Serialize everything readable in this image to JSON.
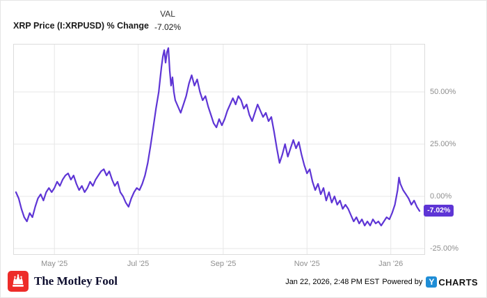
{
  "header": {
    "series_label": "XRP Price (I:XRPUSD) % Change",
    "val_header": "VAL",
    "val_value": "-7.02%"
  },
  "chart_data": {
    "type": "line",
    "title": "XRP Price (I:XRPUSD) % Change",
    "x_unit": "days since 2025-04-01",
    "xlim": [
      0,
      300
    ],
    "ylim": [
      -28,
      73
    ],
    "grid": true,
    "legend_position": "none",
    "xticks": [
      {
        "x": 30,
        "label": "May '25"
      },
      {
        "x": 91,
        "label": "Jul '25"
      },
      {
        "x": 153,
        "label": "Sep '25"
      },
      {
        "x": 214,
        "label": "Nov '25"
      },
      {
        "x": 275,
        "label": "Jan '26"
      }
    ],
    "yticks": [
      {
        "value": 50,
        "label": "50.00%"
      },
      {
        "value": 25,
        "label": "25.00%"
      },
      {
        "value": 0,
        "label": "0.00%"
      },
      {
        "value": -25,
        "label": "-25.00%"
      }
    ],
    "series": [
      {
        "name": "XRP Price (I:XRPUSD) % Change",
        "color": "#5e35d5",
        "points": [
          [
            2,
            2
          ],
          [
            4,
            -1
          ],
          [
            6,
            -6
          ],
          [
            8,
            -10
          ],
          [
            10,
            -12
          ],
          [
            12,
            -8
          ],
          [
            14,
            -10
          ],
          [
            16,
            -5
          ],
          [
            18,
            -1
          ],
          [
            20,
            1
          ],
          [
            22,
            -2
          ],
          [
            24,
            2
          ],
          [
            26,
            4
          ],
          [
            28,
            2
          ],
          [
            30,
            4
          ],
          [
            32,
            7
          ],
          [
            34,
            5
          ],
          [
            36,
            8
          ],
          [
            38,
            10
          ],
          [
            40,
            11
          ],
          [
            42,
            8
          ],
          [
            44,
            10
          ],
          [
            46,
            6
          ],
          [
            48,
            3
          ],
          [
            50,
            5
          ],
          [
            52,
            2
          ],
          [
            54,
            4
          ],
          [
            56,
            7
          ],
          [
            58,
            5
          ],
          [
            60,
            8
          ],
          [
            62,
            10
          ],
          [
            64,
            12
          ],
          [
            66,
            13
          ],
          [
            68,
            10
          ],
          [
            70,
            12
          ],
          [
            72,
            8
          ],
          [
            74,
            5
          ],
          [
            76,
            7
          ],
          [
            78,
            2
          ],
          [
            80,
            0
          ],
          [
            82,
            -3
          ],
          [
            84,
            -5
          ],
          [
            86,
            -1
          ],
          [
            88,
            2
          ],
          [
            90,
            4
          ],
          [
            92,
            3
          ],
          [
            94,
            6
          ],
          [
            96,
            10
          ],
          [
            98,
            16
          ],
          [
            100,
            24
          ],
          [
            102,
            33
          ],
          [
            104,
            42
          ],
          [
            106,
            50
          ],
          [
            107,
            56
          ],
          [
            108,
            62
          ],
          [
            109,
            67
          ],
          [
            110,
            70
          ],
          [
            111,
            64
          ],
          [
            112,
            69
          ],
          [
            113,
            71
          ],
          [
            114,
            60
          ],
          [
            115,
            53
          ],
          [
            116,
            57
          ],
          [
            117,
            50
          ],
          [
            118,
            46
          ],
          [
            120,
            43
          ],
          [
            122,
            40
          ],
          [
            124,
            44
          ],
          [
            126,
            48
          ],
          [
            128,
            54
          ],
          [
            130,
            58
          ],
          [
            132,
            53
          ],
          [
            134,
            56
          ],
          [
            136,
            50
          ],
          [
            138,
            46
          ],
          [
            140,
            48
          ],
          [
            142,
            43
          ],
          [
            144,
            39
          ],
          [
            146,
            35
          ],
          [
            148,
            33
          ],
          [
            150,
            37
          ],
          [
            152,
            34
          ],
          [
            154,
            37
          ],
          [
            156,
            41
          ],
          [
            158,
            44
          ],
          [
            160,
            47
          ],
          [
            162,
            44
          ],
          [
            164,
            48
          ],
          [
            166,
            46
          ],
          [
            168,
            42
          ],
          [
            170,
            44
          ],
          [
            172,
            39
          ],
          [
            174,
            36
          ],
          [
            176,
            40
          ],
          [
            178,
            44
          ],
          [
            180,
            41
          ],
          [
            182,
            38
          ],
          [
            184,
            40
          ],
          [
            186,
            36
          ],
          [
            188,
            38
          ],
          [
            190,
            31
          ],
          [
            192,
            23
          ],
          [
            194,
            16
          ],
          [
            196,
            20
          ],
          [
            198,
            25
          ],
          [
            200,
            19
          ],
          [
            202,
            23
          ],
          [
            204,
            27
          ],
          [
            206,
            23
          ],
          [
            208,
            26
          ],
          [
            210,
            20
          ],
          [
            212,
            15
          ],
          [
            214,
            11
          ],
          [
            216,
            13
          ],
          [
            218,
            7
          ],
          [
            220,
            3
          ],
          [
            222,
            6
          ],
          [
            224,
            1
          ],
          [
            226,
            4
          ],
          [
            228,
            -2
          ],
          [
            230,
            2
          ],
          [
            232,
            -3
          ],
          [
            234,
            0
          ],
          [
            236,
            -4
          ],
          [
            238,
            -2
          ],
          [
            240,
            -6
          ],
          [
            242,
            -4
          ],
          [
            244,
            -6
          ],
          [
            246,
            -9
          ],
          [
            248,
            -12
          ],
          [
            250,
            -10
          ],
          [
            252,
            -13
          ],
          [
            254,
            -11
          ],
          [
            256,
            -14
          ],
          [
            258,
            -12
          ],
          [
            260,
            -14
          ],
          [
            262,
            -11
          ],
          [
            264,
            -13
          ],
          [
            266,
            -12
          ],
          [
            268,
            -14
          ],
          [
            270,
            -12
          ],
          [
            272,
            -10
          ],
          [
            274,
            -11
          ],
          [
            276,
            -8
          ],
          [
            278,
            -4
          ],
          [
            280,
            3
          ],
          [
            281,
            9
          ],
          [
            282,
            6
          ],
          [
            284,
            3
          ],
          [
            286,
            1
          ],
          [
            288,
            -1
          ],
          [
            290,
            -4
          ],
          [
            292,
            -2
          ],
          [
            294,
            -5
          ],
          [
            296,
            -7.02
          ]
        ]
      }
    ],
    "end_label": "-7.02%"
  },
  "footer": {
    "brand": "The Motley Fool",
    "timestamp": "Jan 22, 2026, 2:48 PM EST",
    "powered_by": "Powered by",
    "ycharts_y": "Y",
    "ycharts_wordmark": "CHARTS"
  },
  "colors": {
    "line": "#5e35d5",
    "badge_bg": "#5e35d5",
    "motley_fool_red": "#ed2c29",
    "ycharts_blue": "#1f8dd6",
    "grid": "#e7e7e7",
    "plot_border": "#dcdcdc",
    "axis_text": "#8e8e8e"
  }
}
